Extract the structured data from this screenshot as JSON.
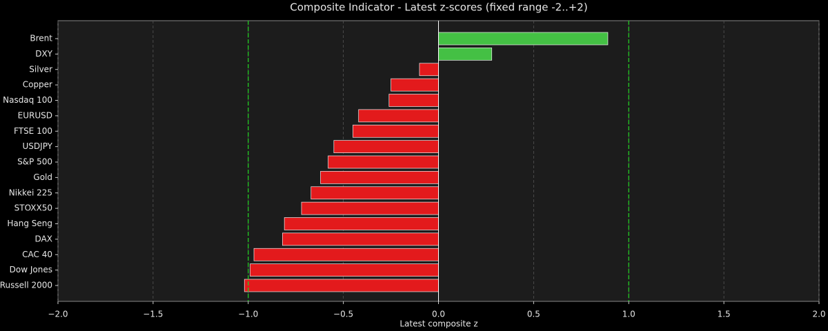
{
  "chart_data": {
    "type": "hbar",
    "title": "Composite Indicator - Latest z-scores (fixed range -2..+2)",
    "xlabel": "Latest composite z",
    "categories": [
      "Brent",
      "DXY",
      "Silver",
      "Copper",
      "Nasdaq 100",
      "EURUSD",
      "FTSE 100",
      "USDJPY",
      "S&P 500",
      "Gold",
      "Nikkei 225",
      "STOXX50",
      "Hang Seng",
      "DAX",
      "CAC 40",
      "Dow Jones",
      "Russell 2000"
    ],
    "values": [
      0.89,
      0.28,
      -0.1,
      -0.25,
      -0.26,
      -0.42,
      -0.45,
      -0.55,
      -0.58,
      -0.62,
      -0.67,
      -0.72,
      -0.81,
      -0.82,
      -0.97,
      -0.99,
      -1.02
    ],
    "positive_color": "#44c044",
    "negative_color": "#e31a1c",
    "thresholds": [
      -1,
      1
    ],
    "threshold_color": "#22cc22",
    "xlim": [
      -2,
      2
    ],
    "xticks": [
      {
        "value": -2,
        "label": "−2.0"
      },
      {
        "value": -1.5,
        "label": "−1.5"
      },
      {
        "value": -1,
        "label": "−1.0"
      },
      {
        "value": -0.5,
        "label": "−0.5"
      },
      {
        "value": 0,
        "label": "0.0"
      },
      {
        "value": 0.5,
        "label": "0.5"
      },
      {
        "value": 1,
        "label": "1.0"
      },
      {
        "value": 1.5,
        "label": "1.5"
      },
      {
        "value": 2,
        "label": "2.0"
      }
    ],
    "grid": true
  }
}
